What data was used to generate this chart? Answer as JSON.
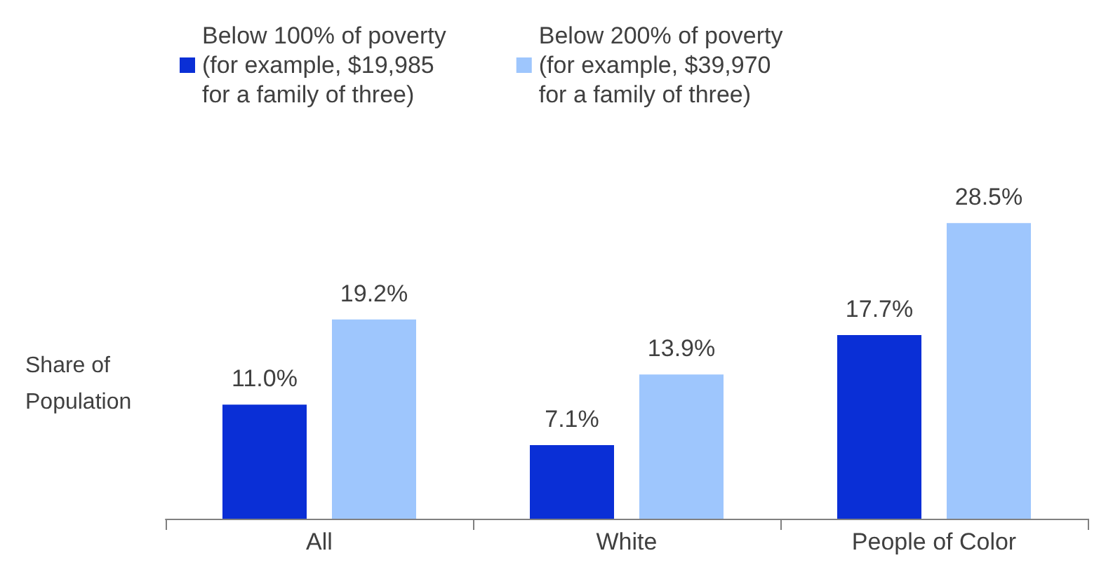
{
  "chart_data": {
    "type": "bar",
    "ylabel": "Share of\nPopulation",
    "categories": [
      "All",
      "White",
      "People of Color"
    ],
    "series": [
      {
        "name": "Below 100% of poverty\n(for example, $19,985\nfor a family of three)",
        "color": "#0a2fd6",
        "values": [
          11.0,
          7.1,
          17.7
        ],
        "value_labels": [
          "11.0%",
          "7.1%",
          "17.7%"
        ]
      },
      {
        "name": "Below 200% of poverty\n(for example, $39,970\nfor a family of three)",
        "color": "#9ec6fd",
        "values": [
          19.2,
          13.9,
          28.5
        ],
        "value_labels": [
          "19.2%",
          "13.9%",
          "28.5%"
        ]
      }
    ],
    "legend": "top left",
    "grid": false
  }
}
